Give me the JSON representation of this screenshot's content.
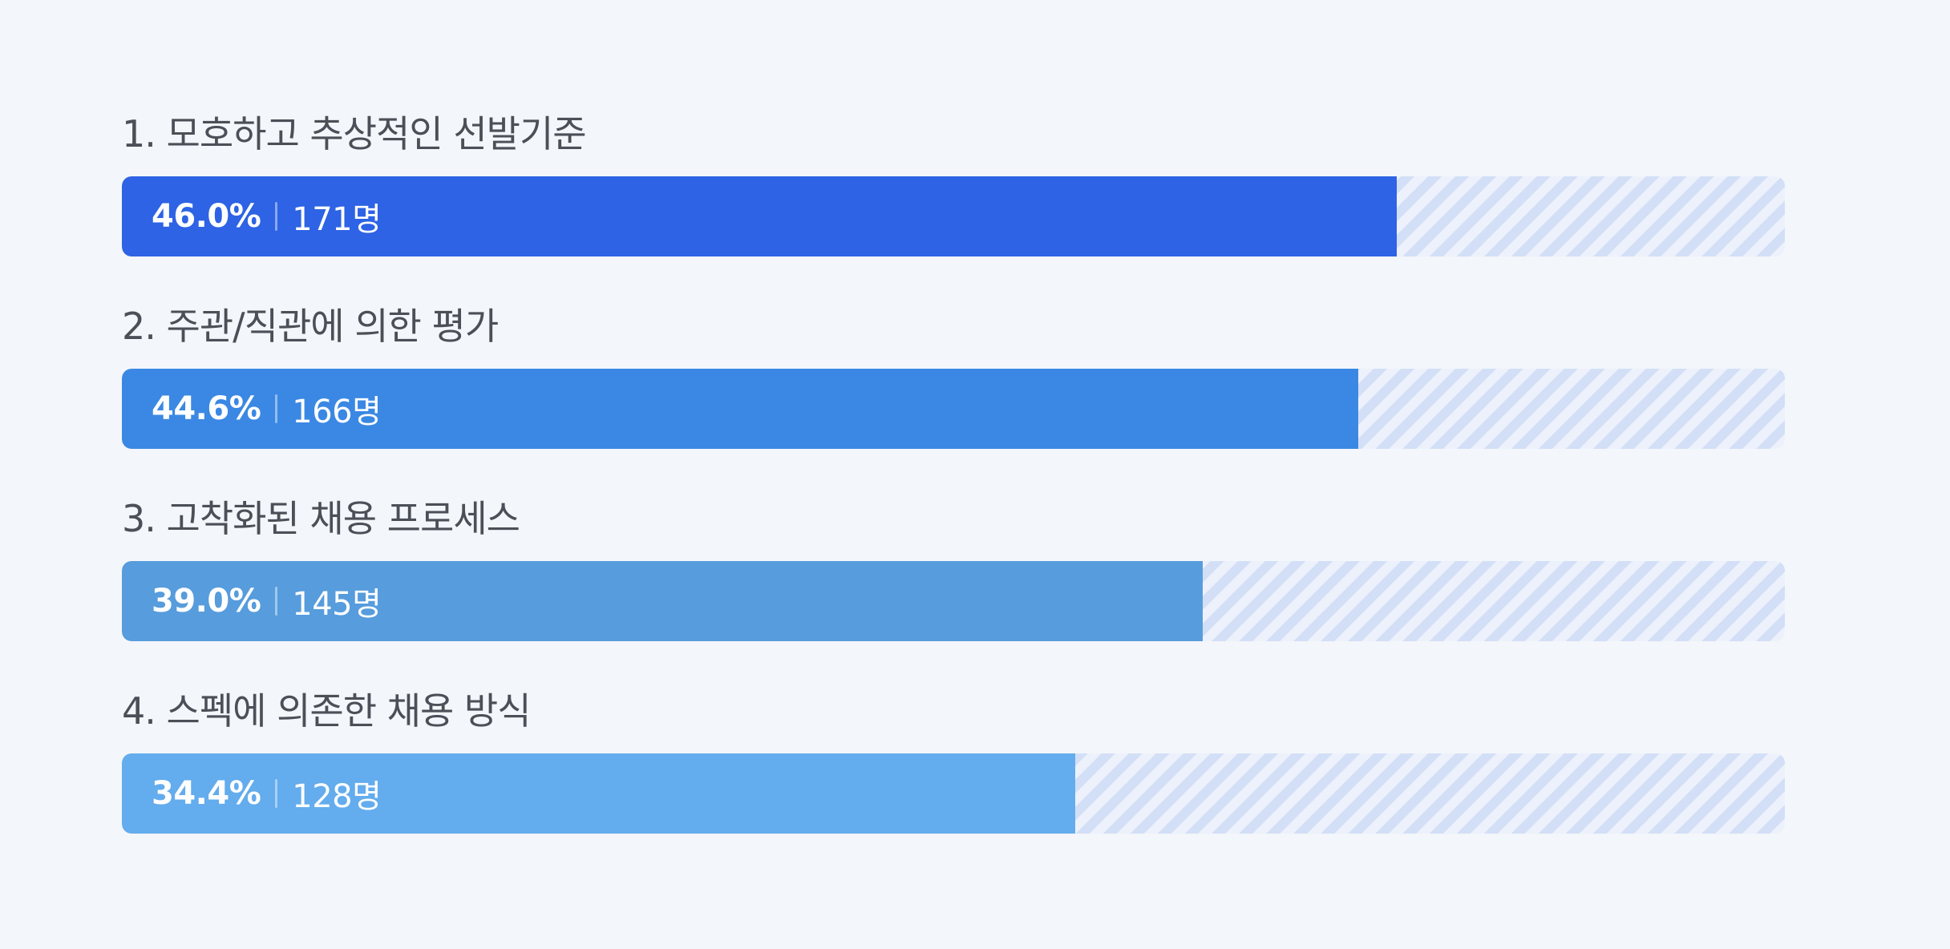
{
  "chart_data": {
    "type": "bar",
    "orientation": "horizontal",
    "categories": [
      "1. 모호하고 추상적인 선발기준",
      "2. 주관/직관에 의한 평가",
      "3. 고착화된 채용 프로세스",
      "4. 스펙에 의존한 채용 방식"
    ],
    "values": [
      46.0,
      44.6,
      39.0,
      34.4
    ],
    "counts": [
      171,
      166,
      145,
      128
    ],
    "value_labels": [
      "46.0%",
      "44.6%",
      "39.0%",
      "34.4%"
    ],
    "count_labels": [
      "171명",
      "166명",
      "145명",
      "128명"
    ],
    "unit": "%",
    "colors": [
      "#2d63e4",
      "#3a88e3",
      "#579cdc",
      "#63aced"
    ],
    "track_color": "#d2dff6",
    "xlim": [
      0,
      60
    ],
    "grid": false,
    "legend": "none"
  }
}
